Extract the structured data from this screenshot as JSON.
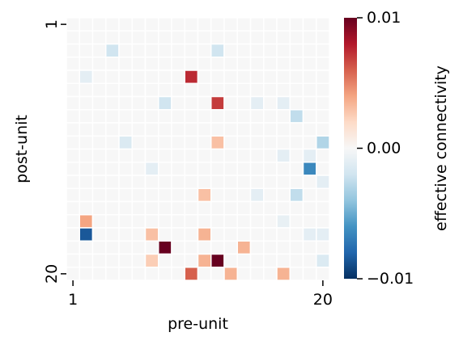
{
  "chart_data": {
    "type": "heatmap",
    "xlabel": "pre-unit",
    "ylabel": "post-unit",
    "n_rows": 20,
    "n_cols": 20,
    "x_ticks": [
      {
        "index": 1,
        "label": "1"
      },
      {
        "index": 20,
        "label": "20"
      }
    ],
    "y_ticks": [
      {
        "index": 1,
        "label": "1"
      },
      {
        "index": 20,
        "label": "20"
      }
    ],
    "colorbar": {
      "label": "effective connectivity",
      "vmin": -0.01,
      "vmax": 0.01,
      "ticks": [
        {
          "value": 0.01,
          "label": "0.01"
        },
        {
          "value": 0.0,
          "label": "0.00"
        },
        {
          "value": -0.01,
          "label": "−0.01"
        }
      ],
      "colormap": "RdBu_r"
    },
    "background_value": 0.0,
    "cell_separator_color": "#ffffff",
    "cells": [
      {
        "row": 3,
        "col": 4,
        "value": -0.002
      },
      {
        "row": 3,
        "col": 12,
        "value": -0.002
      },
      {
        "row": 5,
        "col": 2,
        "value": -0.001
      },
      {
        "row": 5,
        "col": 10,
        "value": 0.0075
      },
      {
        "row": 7,
        "col": 8,
        "value": -0.002
      },
      {
        "row": 7,
        "col": 12,
        "value": 0.007
      },
      {
        "row": 7,
        "col": 15,
        "value": -0.001
      },
      {
        "row": 7,
        "col": 17,
        "value": -0.001
      },
      {
        "row": 8,
        "col": 18,
        "value": -0.0025
      },
      {
        "row": 10,
        "col": 5,
        "value": -0.0015
      },
      {
        "row": 10,
        "col": 12,
        "value": 0.003
      },
      {
        "row": 10,
        "col": 20,
        "value": -0.003
      },
      {
        "row": 11,
        "col": 17,
        "value": -0.001
      },
      {
        "row": 11,
        "col": 19,
        "value": -0.001
      },
      {
        "row": 12,
        "col": 7,
        "value": -0.001
      },
      {
        "row": 12,
        "col": 19,
        "value": -0.0065
      },
      {
        "row": 13,
        "col": 20,
        "value": -0.001
      },
      {
        "row": 14,
        "col": 11,
        "value": 0.003
      },
      {
        "row": 14,
        "col": 15,
        "value": -0.001
      },
      {
        "row": 14,
        "col": 18,
        "value": -0.0025
      },
      {
        "row": 16,
        "col": 17,
        "value": -0.0008
      },
      {
        "row": 16,
        "col": 2,
        "value": 0.004
      },
      {
        "row": 17,
        "col": 2,
        "value": -0.0085
      },
      {
        "row": 17,
        "col": 7,
        "value": 0.003
      },
      {
        "row": 17,
        "col": 11,
        "value": 0.0035
      },
      {
        "row": 17,
        "col": 19,
        "value": -0.001
      },
      {
        "row": 17,
        "col": 20,
        "value": -0.001
      },
      {
        "row": 18,
        "col": 8,
        "value": 0.01
      },
      {
        "row": 18,
        "col": 14,
        "value": 0.0035
      },
      {
        "row": 19,
        "col": 7,
        "value": 0.0025
      },
      {
        "row": 19,
        "col": 11,
        "value": 0.0035
      },
      {
        "row": 19,
        "col": 12,
        "value": 0.01
      },
      {
        "row": 19,
        "col": 20,
        "value": -0.0015
      },
      {
        "row": 20,
        "col": 10,
        "value": 0.006
      },
      {
        "row": 20,
        "col": 13,
        "value": 0.0035
      },
      {
        "row": 20,
        "col": 17,
        "value": 0.0035
      }
    ]
  }
}
